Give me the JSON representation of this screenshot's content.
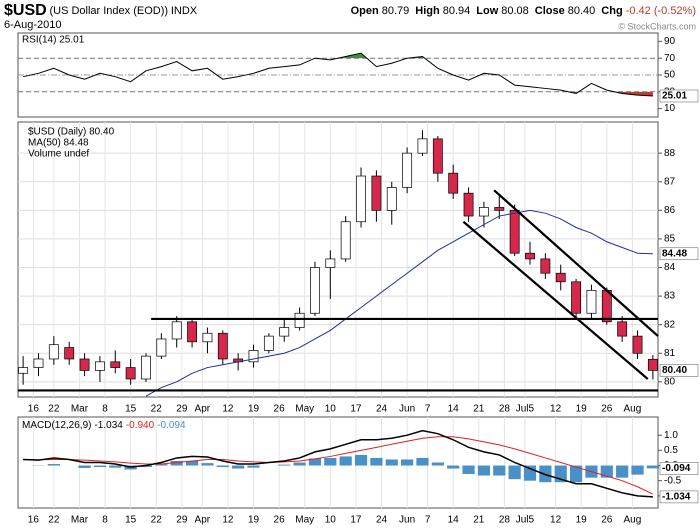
{
  "header": {
    "title": "$USD",
    "subtitle": "(US Dollar Index (EOD))",
    "exchange": "INDX",
    "date": "6-Aug-2010",
    "watermark": "© StockCharts.com",
    "quote": [
      {
        "label": "Open",
        "value": "80.79"
      },
      {
        "label": "High",
        "value": "80.94"
      },
      {
        "label": "Low",
        "value": "80.08"
      },
      {
        "label": "Close",
        "value": "80.40"
      },
      {
        "label": "Chg",
        "value": "-0.42 (-0.52%)"
      }
    ]
  },
  "chart_data": [
    {
      "type": "rsi",
      "legend": "RSI(14) 25.01",
      "xlim": [
        0,
        125
      ],
      "ylim": [
        0,
        100
      ],
      "yticks": [
        90,
        70,
        50,
        30,
        10
      ],
      "x": [
        1,
        4,
        7,
        10,
        13,
        16,
        19,
        22,
        25,
        28,
        31,
        34,
        37,
        40,
        43,
        46,
        49,
        52,
        55,
        58,
        61,
        64,
        67,
        70,
        73,
        76,
        79,
        82,
        85,
        88,
        91,
        94,
        97,
        100,
        103,
        106,
        109,
        112,
        115,
        118,
        121,
        124
      ],
      "series": [
        {
          "name": "RSI(14)",
          "color": "#000000",
          "values": [
            48,
            52,
            58,
            50,
            45,
            52,
            48,
            42,
            55,
            60,
            66,
            55,
            58,
            45,
            48,
            52,
            58,
            60,
            62,
            70,
            68,
            72,
            76,
            60,
            64,
            70,
            72,
            58,
            50,
            44,
            52,
            50,
            38,
            36,
            34,
            32,
            28,
            40,
            32,
            28,
            26,
            25.01
          ]
        }
      ],
      "overbought": 70,
      "oversold": 30,
      "midline": 50,
      "overbought_color": "#3c8c3c",
      "oversold_color": "#c0392b"
    },
    {
      "type": "candlestick",
      "xlim": [
        0,
        125
      ],
      "ylim": [
        79.47,
        89.09
      ],
      "yticks": [
        80,
        81,
        82,
        83,
        84,
        85,
        86,
        87,
        88
      ],
      "grid": true,
      "legend": [
        "$USD (Daily) 80.40",
        "MA(50) 84.48",
        "Volume undef"
      ],
      "x": [
        1,
        4,
        7,
        10,
        13,
        16,
        19,
        22,
        25,
        28,
        31,
        34,
        37,
        40,
        43,
        46,
        49,
        52,
        55,
        58,
        61,
        64,
        67,
        70,
        73,
        76,
        79,
        82,
        85,
        88,
        91,
        94,
        97,
        100,
        103,
        106,
        109,
        112,
        115,
        118,
        121,
        124
      ],
      "xticks": [
        {
          "value": 3,
          "label": "16"
        },
        {
          "value": 7,
          "label": "22"
        },
        {
          "value": 12,
          "label": "Mar"
        },
        {
          "value": 17,
          "label": "8"
        },
        {
          "value": 22,
          "label": "15"
        },
        {
          "value": 27,
          "label": "22"
        },
        {
          "value": 32,
          "label": "29"
        },
        {
          "value": 36,
          "label": "Apr"
        },
        {
          "value": 41,
          "label": "12"
        },
        {
          "value": 46,
          "label": "19"
        },
        {
          "value": 51,
          "label": "26"
        },
        {
          "value": 56,
          "label": "May"
        },
        {
          "value": 61,
          "label": "10"
        },
        {
          "value": 66,
          "label": "17"
        },
        {
          "value": 71,
          "label": "24"
        },
        {
          "value": 76,
          "label": "Jun"
        },
        {
          "value": 80,
          "label": "7"
        },
        {
          "value": 85,
          "label": "14"
        },
        {
          "value": 90,
          "label": "21"
        },
        {
          "value": 95,
          "label": "28"
        },
        {
          "value": 99,
          "label": "Jul5"
        },
        {
          "value": 105,
          "label": "12"
        },
        {
          "value": 110,
          "label": "19"
        },
        {
          "value": 115,
          "label": "26"
        },
        {
          "value": 120,
          "label": "Aug"
        }
      ],
      "up_color": "#ffffff",
      "down_color": "#d6284b",
      "open": [
        80.3,
        80.5,
        80.8,
        81.2,
        80.8,
        80.4,
        80.7,
        80.5,
        80.1,
        80.9,
        81.5,
        82.1,
        81.4,
        81.7,
        80.8,
        80.7,
        81.1,
        81.6,
        81.9,
        82.4,
        84.0,
        84.3,
        85.6,
        87.2,
        86.0,
        86.8,
        88.0,
        88.5,
        87.3,
        86.6,
        85.8,
        86.1,
        86.0,
        84.5,
        84.3,
        83.8,
        83.5,
        82.4,
        83.2,
        82.1,
        81.6,
        80.79
      ],
      "high": [
        80.9,
        81.0,
        81.6,
        81.4,
        81.0,
        80.9,
        81.1,
        80.8,
        81.0,
        81.7,
        82.3,
        82.2,
        81.9,
        81.8,
        81.0,
        81.3,
        81.7,
        82.2,
        82.6,
        84.2,
        84.6,
        85.8,
        87.5,
        87.4,
        87.0,
        88.2,
        88.8,
        88.6,
        87.6,
        86.8,
        86.3,
        86.5,
        86.2,
        84.9,
        84.5,
        84.1,
        83.6,
        83.4,
        83.3,
        82.3,
        81.8,
        80.94
      ],
      "low": [
        79.9,
        80.2,
        80.6,
        80.6,
        80.2,
        80.0,
        80.3,
        79.9,
        80.0,
        80.8,
        81.2,
        81.2,
        81.0,
        80.6,
        80.4,
        80.5,
        81.0,
        81.4,
        81.8,
        82.3,
        82.9,
        84.2,
        85.4,
        85.6,
        85.5,
        86.6,
        87.9,
        87.0,
        86.4,
        85.6,
        85.4,
        85.7,
        84.4,
        84.1,
        83.6,
        83.2,
        82.2,
        82.2,
        82.0,
        81.4,
        80.8,
        80.08
      ],
      "close": [
        80.5,
        80.8,
        81.3,
        80.8,
        80.4,
        80.7,
        80.5,
        80.1,
        80.9,
        81.5,
        82.1,
        81.4,
        81.7,
        80.8,
        80.7,
        81.1,
        81.6,
        81.9,
        82.4,
        84.0,
        84.3,
        85.6,
        87.2,
        86.0,
        86.8,
        88.0,
        88.5,
        87.3,
        86.6,
        85.8,
        86.1,
        86.0,
        84.5,
        84.3,
        83.8,
        83.5,
        82.4,
        83.2,
        82.1,
        81.6,
        81.0,
        80.4
      ],
      "close_label": "80.40",
      "series": [
        {
          "name": "MA(50)",
          "color": "#1f2f9e",
          "last_label": "84.48",
          "values": [
            null,
            null,
            null,
            null,
            null,
            null,
            null,
            null,
            79.5,
            79.8,
            80.0,
            80.3,
            80.5,
            80.6,
            80.7,
            80.8,
            80.9,
            81.0,
            81.2,
            81.5,
            81.8,
            82.2,
            82.6,
            83.0,
            83.4,
            83.8,
            84.2,
            84.6,
            84.9,
            85.2,
            85.5,
            85.8,
            85.9,
            86.0,
            85.9,
            85.7,
            85.4,
            85.2,
            84.9,
            84.7,
            84.5,
            84.48
          ]
        }
      ],
      "trendlines": [
        {
          "x": [
            26,
            125
          ],
          "y": [
            82.2,
            82.2
          ]
        },
        {
          "x": [
            0,
            125
          ],
          "y": [
            79.7,
            79.7
          ]
        },
        {
          "x": [
            93,
            125
          ],
          "y": [
            86.7,
            81.6
          ]
        },
        {
          "x": [
            87,
            123
          ],
          "y": [
            85.6,
            80.1
          ]
        }
      ]
    },
    {
      "type": "macd",
      "legend": "MACD(12,26,9)",
      "xlim": [
        0,
        125
      ],
      "ylim": [
        -1.4,
        1.6
      ],
      "yticks": [
        {
          "value": 1,
          "label": "1.0"
        },
        {
          "value": 0.5,
          "label": "0.5"
        },
        {
          "value": 0,
          "label": "0.0"
        },
        {
          "value": -0.5,
          "label": "-0.5"
        },
        {
          "value": -1,
          "label": "-1.0"
        }
      ],
      "x": [
        1,
        4,
        7,
        10,
        13,
        16,
        19,
        22,
        25,
        28,
        31,
        34,
        37,
        40,
        43,
        46,
        49,
        52,
        55,
        58,
        61,
        64,
        67,
        70,
        73,
        76,
        79,
        82,
        85,
        88,
        91,
        94,
        97,
        100,
        103,
        106,
        109,
        112,
        115,
        118,
        121,
        124
      ],
      "xticks": [
        {
          "value": 3,
          "label": "16"
        },
        {
          "value": 7,
          "label": "22"
        },
        {
          "value": 12,
          "label": "Mar"
        },
        {
          "value": 17,
          "label": "8"
        },
        {
          "value": 22,
          "label": "15"
        },
        {
          "value": 27,
          "label": "22"
        },
        {
          "value": 32,
          "label": "29"
        },
        {
          "value": 36,
          "label": "Apr"
        },
        {
          "value": 41,
          "label": "12"
        },
        {
          "value": 46,
          "label": "19"
        },
        {
          "value": 51,
          "label": "26"
        },
        {
          "value": 56,
          "label": "May"
        },
        {
          "value": 61,
          "label": "10"
        },
        {
          "value": 66,
          "label": "17"
        },
        {
          "value": 71,
          "label": "24"
        },
        {
          "value": 76,
          "label": "Jun"
        },
        {
          "value": 80,
          "label": "7"
        },
        {
          "value": 85,
          "label": "14"
        },
        {
          "value": 90,
          "label": "21"
        },
        {
          "value": 95,
          "label": "28"
        },
        {
          "value": 99,
          "label": "Jul5"
        },
        {
          "value": 105,
          "label": "12"
        },
        {
          "value": 110,
          "label": "19"
        },
        {
          "value": 115,
          "label": "26"
        },
        {
          "value": 120,
          "label": "Aug"
        }
      ],
      "series": [
        {
          "name": "MACD",
          "color": "#000000",
          "last_label": "-1.034",
          "values": [
            0.2,
            0.18,
            0.25,
            0.2,
            0.1,
            0.1,
            0.05,
            -0.05,
            0.0,
            0.1,
            0.25,
            0.3,
            0.28,
            0.15,
            0.05,
            0.05,
            0.1,
            0.15,
            0.25,
            0.45,
            0.55,
            0.7,
            0.85,
            0.85,
            0.9,
            1.0,
            1.15,
            1.05,
            0.85,
            0.6,
            0.45,
            0.35,
            0.1,
            -0.1,
            -0.3,
            -0.45,
            -0.6,
            -0.6,
            -0.75,
            -0.9,
            -1.0,
            -1.034
          ]
        },
        {
          "name": "Signal",
          "color": "#e02020",
          "last_label": "-0.940",
          "values": [
            0.2,
            0.19,
            0.2,
            0.2,
            0.18,
            0.15,
            0.12,
            0.08,
            0.05,
            0.05,
            0.1,
            0.15,
            0.2,
            0.2,
            0.15,
            0.12,
            0.1,
            0.12,
            0.15,
            0.22,
            0.3,
            0.4,
            0.5,
            0.6,
            0.7,
            0.8,
            0.9,
            0.95,
            0.95,
            0.88,
            0.78,
            0.68,
            0.55,
            0.4,
            0.25,
            0.1,
            -0.05,
            -0.2,
            -0.35,
            -0.5,
            -0.7,
            -0.94
          ]
        },
        {
          "name": "Histogram",
          "color": "#4a90c8",
          "last_label": "-0.094",
          "values": [
            0,
            -0.01,
            0.05,
            0,
            -0.08,
            -0.05,
            -0.07,
            -0.13,
            -0.05,
            0.05,
            0.15,
            0.15,
            0.08,
            -0.05,
            -0.1,
            -0.07,
            0,
            0.03,
            0.1,
            0.23,
            0.25,
            0.3,
            0.35,
            0.25,
            0.2,
            0.2,
            0.25,
            0.1,
            -0.1,
            -0.28,
            -0.33,
            -0.33,
            -0.45,
            -0.5,
            -0.55,
            -0.55,
            -0.55,
            -0.4,
            -0.4,
            -0.4,
            -0.3,
            -0.094
          ]
        }
      ]
    }
  ]
}
